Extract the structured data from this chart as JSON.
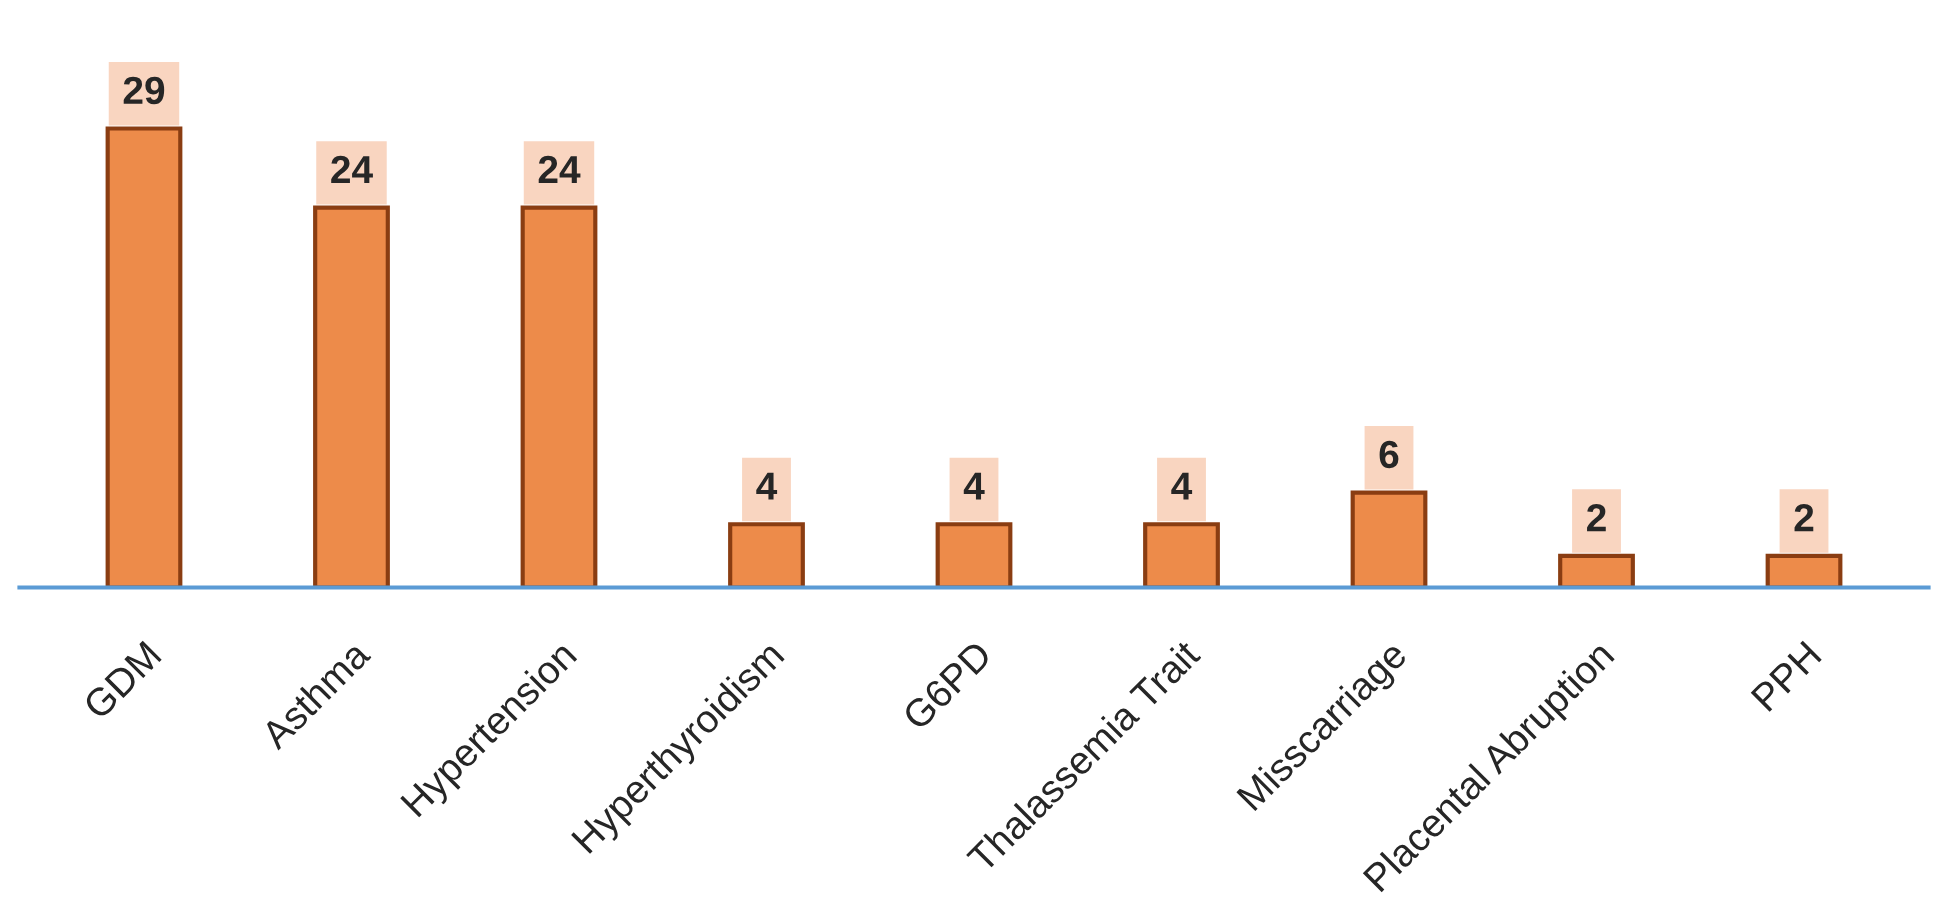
{
  "chart_data": {
    "type": "bar",
    "categories": [
      "GDM",
      "Asthma",
      "Hypertension",
      "Hyperthyroidism",
      "G6PD",
      "Thalassemia Trait",
      "Misscarriage",
      "Placental Abruption",
      "PPH"
    ],
    "values": [
      29,
      24,
      24,
      4,
      4,
      4,
      6,
      2,
      2
    ],
    "color": "#ed8b4a",
    "data_labels": true,
    "grid": false,
    "legend": false
  }
}
